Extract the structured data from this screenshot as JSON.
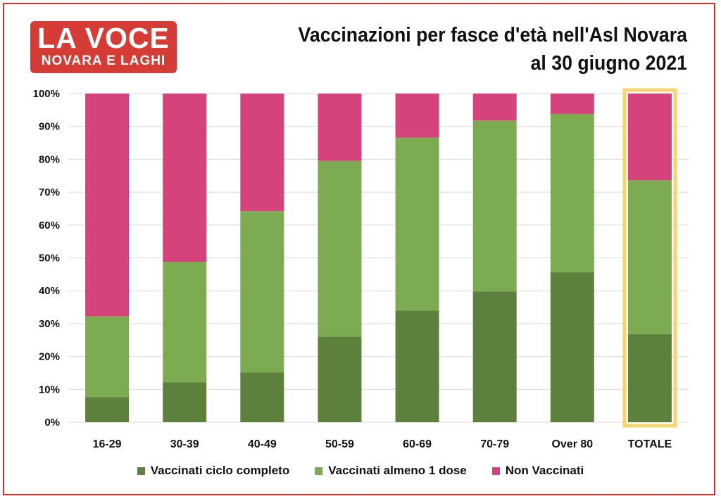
{
  "logo": {
    "line1": "LA VOCE",
    "line2": "NOVARA E LAGHI",
    "color": "#d43c35"
  },
  "chart_data": {
    "type": "bar",
    "stacked": true,
    "title": [
      "Vaccinazioni per fasce d'età nell'Asl Novara",
      "al 30 giugno 2021"
    ],
    "categories": [
      "16-29",
      "30-39",
      "40-49",
      "50-59",
      "60-69",
      "70-79",
      "Over 80",
      "TOTALE"
    ],
    "series": [
      {
        "name": "Vaccinati ciclo completo",
        "color": "#5e803d",
        "values": [
          7.6,
          12.1,
          15.1,
          26.0,
          34.0,
          39.8,
          45.6,
          26.8
        ]
      },
      {
        "name": "Vaccinati almeno 1 dose",
        "color": "#7dab51",
        "values": [
          24.6,
          36.7,
          49.1,
          53.5,
          52.6,
          52.0,
          48.2,
          46.8
        ]
      },
      {
        "name": "Non Vaccinati",
        "color": "#d6437c",
        "values": [
          67.8,
          51.2,
          35.8,
          20.5,
          13.4,
          8.2,
          6.2,
          26.4
        ]
      }
    ],
    "yticks": [
      "0%",
      "10%",
      "20%",
      "30%",
      "40%",
      "50%",
      "60%",
      "70%",
      "80%",
      "90%",
      "100%"
    ],
    "ylim": [
      0,
      100
    ],
    "grid": true,
    "legend_position": "bottom",
    "highlight_category": "TOTALE",
    "highlight_color": "#f7d56e"
  }
}
